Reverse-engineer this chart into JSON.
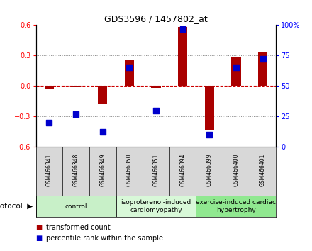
{
  "title": "GDS3596 / 1457802_at",
  "samples": [
    "GSM466341",
    "GSM466348",
    "GSM466349",
    "GSM466350",
    "GSM466351",
    "GSM466394",
    "GSM466399",
    "GSM466400",
    "GSM466401"
  ],
  "transformed_count": [
    -0.03,
    -0.01,
    -0.18,
    0.26,
    -0.02,
    0.58,
    -0.44,
    0.28,
    0.34
  ],
  "percentile_rank": [
    20,
    27,
    12,
    65,
    30,
    97,
    10,
    65,
    72
  ],
  "groups": [
    {
      "label": "control",
      "start": 0,
      "end": 3,
      "color": "#c8f0c8"
    },
    {
      "label": "isoproterenol-induced\ncardiomyopathy",
      "start": 3,
      "end": 6,
      "color": "#d8f8d8"
    },
    {
      "label": "exercise-induced cardiac\nhypertrophy",
      "start": 6,
      "end": 9,
      "color": "#90e890"
    }
  ],
  "bar_color": "#aa0000",
  "dot_color": "#0000cc",
  "ylim_left": [
    -0.6,
    0.6
  ],
  "ylim_right": [
    0,
    100
  ],
  "yticks_left": [
    -0.6,
    -0.3,
    0.0,
    0.3,
    0.6
  ],
  "yticks_right": [
    0,
    25,
    50,
    75,
    100
  ],
  "ytick_right_labels": [
    "0",
    "25",
    "50",
    "75",
    "100%"
  ],
  "hline_color": "#cc0000",
  "dotted_color": "#888888",
  "plot_bg": "#ffffff",
  "legend_red_label": "transformed count",
  "legend_blue_label": "percentile rank within the sample",
  "bar_width": 0.35,
  "dot_size": 28,
  "sample_box_color": "#d8d8d8",
  "title_fontsize": 9,
  "tick_fontsize": 7,
  "sample_fontsize": 5.5,
  "proto_fontsize": 6.5,
  "legend_fontsize": 7
}
